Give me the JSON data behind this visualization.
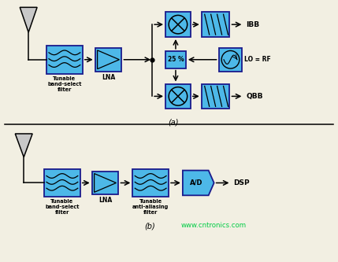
{
  "bg_color": "#f2efe2",
  "box_fill": "#4db8e8",
  "box_edge": "#1a1a8c",
  "fig_width": 4.29,
  "fig_height": 3.33,
  "dpi": 100,
  "watermark": "www.cntronics.com",
  "watermark_color": "#00cc44",
  "label_a": "(a)",
  "label_b": "(b)",
  "ant_fill": "#c8c8c8",
  "line_color": "black",
  "text_color": "black"
}
